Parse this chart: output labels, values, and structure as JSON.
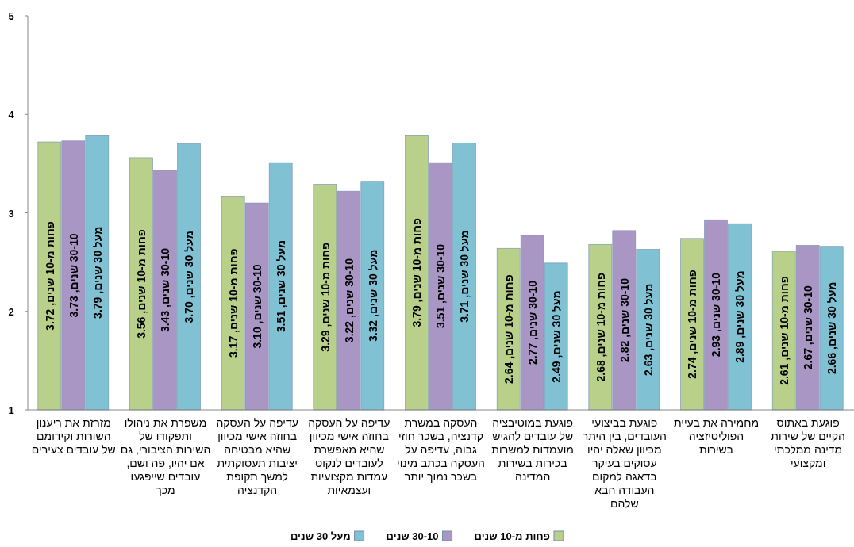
{
  "chart_data": {
    "type": "bar",
    "categories": [
      "מזרזת את ריענון השורות וקידומם של עובדים צעירים",
      "משפרת את ניהולו ותפקודו של השירות הציבורי, גם אם יהיו, פה ושם, עובדים שייפגעו מכך",
      "עדיפה על העסקה בחוזה אישי מכיוון שהיא מבטיחה יציבות תעסוקתית למשך תקופת הקדנציה",
      "עדיפה על העסקה בחוזה אישי מכיוון שהיא מאפשרת לעובדים לנקוט עמדות מקצועיות ועצמאיות",
      "העסקה במשרת קדנציה, בשכר חוזי גבוה, עדיפה על העסקה בכתב מינוי בשכר נמוך יותר",
      "פוגעת במוטיבציה של עובדים להגיש מועמדות למשרות בכירות בשירות המדינה",
      "פוגעת בביצועי העובדים, בין היתר מכיוון שאלה יהיו עסוקים בעיקר בדאגה למקום העבודה הבא שלהם",
      "מחמירה את בעיית הפוליטיזציה בשירות",
      "פוגעת באתוס הקיים של שירות מדינה ממלכתי ומקצועי"
    ],
    "series": [
      {
        "name": "פחות מ-10 שנים",
        "color": "#b9d08b",
        "values": [
          3.72,
          3.56,
          3.17,
          3.29,
          3.79,
          2.64,
          2.68,
          2.74,
          2.61
        ],
        "value_labels": [
          "פחות מ-10 שנים, 3.72",
          "פחות מ-10 שנים, 3.56",
          "פחות מ-10 שנים, 3.17",
          "פחות מ-10 שנים, 3.29",
          "פחות מ-10 שנים, 3.79",
          "פחות מ-10 שנים, 2.64",
          "פחות מ-10 שנים, 2.68",
          "פחות מ-10 שנים, 2.74",
          "פחות מ-10 שנים, 2.61"
        ]
      },
      {
        "name": "30-10 שנים",
        "color": "#a996c5",
        "values": [
          3.73,
          3.43,
          3.1,
          3.22,
          3.51,
          2.77,
          2.82,
          2.93,
          2.67
        ],
        "value_labels": [
          "30-10 שנים, 3.73",
          "30-10 שנים, 3.43",
          "30-10 שנים, 3.10",
          "30-10 שנים, 3.22",
          "30-10 שנים, 3.51",
          "30-10 שנים, 2.77",
          "30-10 שנים, 2.82",
          "30-10 שנים, 2.93",
          "30-10 שנים, 2.67"
        ]
      },
      {
        "name": "מעל 30 שנים",
        "color": "#80c1d4",
        "values": [
          3.79,
          3.7,
          3.51,
          3.32,
          3.71,
          2.49,
          2.63,
          2.89,
          2.66
        ],
        "value_labels": [
          "מעל 30 שנים, 3.79",
          "מעל 30 שנים, 3.70",
          "מעל 30 שנים, 3.51",
          "מעל 30 שנים, 3.32",
          "מעל 30 שנים, 3.71",
          "מעל 30 שנים, 2.49",
          "מעל 30 שנים, 2.63",
          "מעל 30 שנים, 2.89",
          "מעל 30 שנים, 2.66"
        ]
      }
    ],
    "ylim": [
      1,
      5
    ],
    "yticks": [
      1,
      2,
      3,
      4,
      5
    ],
    "grid": false,
    "legend": "bottom"
  }
}
